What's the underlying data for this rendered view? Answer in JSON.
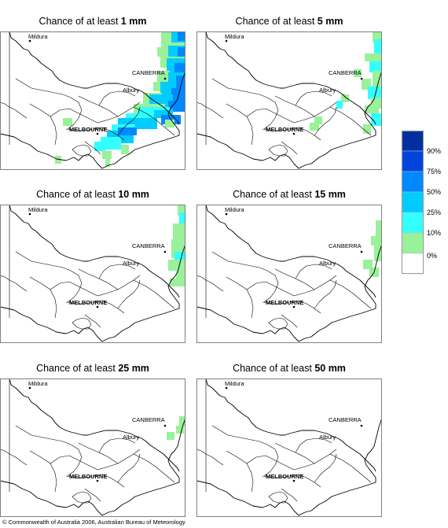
{
  "colors": {
    "level_10": "#99f199",
    "level_25": "#33ffff",
    "level_50": "#00ccff",
    "level_75": "#0088ff",
    "level_90": "#0044dd",
    "level_top": "#0030a0",
    "outline": "#000000",
    "border": "#808080"
  },
  "places": {
    "mildura": "Mildura",
    "canberra": "CANBERRA",
    "albury": "Albury",
    "melbourne": "MELBOURNE"
  },
  "panels": [
    {
      "prefix": "Chance of at least ",
      "amount": "1 mm"
    },
    {
      "prefix": "Chance of at least ",
      "amount": "5 mm"
    },
    {
      "prefix": "Chance of at least ",
      "amount": "10 mm"
    },
    {
      "prefix": "Chance of at least ",
      "amount": "15 mm"
    },
    {
      "prefix": "Chance of at least ",
      "amount": "25 mm"
    },
    {
      "prefix": "Chance of at least ",
      "amount": "50 mm"
    }
  ],
  "legend": {
    "labels": [
      "90%",
      "75%",
      "50%",
      "25%",
      "10%",
      "0%"
    ],
    "bands": [
      "level_top",
      "level_90",
      "level_75",
      "level_50",
      "level_25",
      "level_10",
      "none"
    ]
  },
  "footer": "© Commonwealth of Australia 2006, Australian Bureau of Meteorology"
}
